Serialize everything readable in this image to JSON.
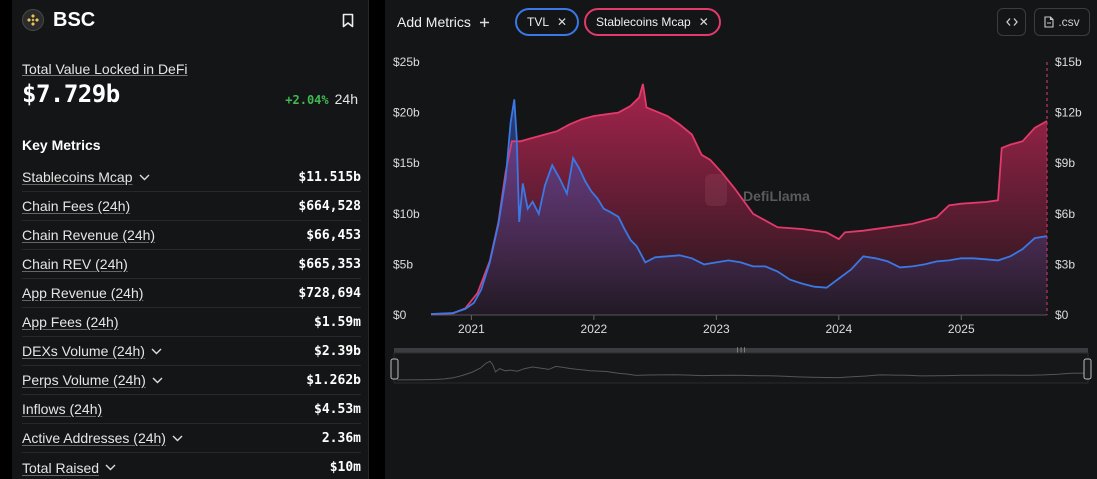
{
  "chain": {
    "name": "BSC",
    "logo_icon": "bnb-logo-icon"
  },
  "tvl": {
    "label": "Total Value Locked in DeFi",
    "value": "$7.729b",
    "change": "+2.04%",
    "period": "24h"
  },
  "key_metrics": {
    "title": "Key Metrics",
    "rows": [
      {
        "label": "Stablecoins Mcap",
        "value": "$11.515b",
        "dropdown": true
      },
      {
        "label": "Chain Fees (24h)",
        "value": "$664,528",
        "dropdown": false
      },
      {
        "label": "Chain Revenue (24h)",
        "value": "$66,453",
        "dropdown": false
      },
      {
        "label": "Chain REV (24h)",
        "value": "$665,353",
        "dropdown": false
      },
      {
        "label": "App Revenue (24h)",
        "value": "$728,694",
        "dropdown": false
      },
      {
        "label": "App Fees (24h)",
        "value": "$1.59m",
        "dropdown": false
      },
      {
        "label": "DEXs Volume (24h)",
        "value": "$2.39b",
        "dropdown": true
      },
      {
        "label": "Perps Volume (24h)",
        "value": "$1.262b",
        "dropdown": true
      },
      {
        "label": "Inflows (24h)",
        "value": "$4.53m",
        "dropdown": false
      },
      {
        "label": "Active Addresses (24h)",
        "value": "2.36m",
        "dropdown": true
      },
      {
        "label": "Total Raised",
        "value": "$10m",
        "dropdown": true
      }
    ]
  },
  "toolbar": {
    "add_metrics_label": "Add Metrics",
    "chips": [
      {
        "label": "TVL",
        "color": "#3a78e6"
      },
      {
        "label": "Stablecoins Mcap",
        "color": "#e23a6a"
      }
    ],
    "csv_label": ".csv"
  },
  "chart_data": {
    "type": "line",
    "watermark": "DefiLlama",
    "x_ticks": [
      "2021",
      "2022",
      "2023",
      "2024",
      "2025"
    ],
    "y_left_ticks": [
      "$0",
      "$5b",
      "$10b",
      "$15b",
      "$20b",
      "$25b"
    ],
    "y_right_ticks": [
      "$0",
      "$3b",
      "$6b",
      "$9b",
      "$12b",
      "$15b"
    ],
    "y_left_range": [
      0,
      25
    ],
    "y_right_range": [
      0,
      15
    ],
    "x_range": [
      2020.67,
      2025.7
    ],
    "series": [
      {
        "name": "TVL",
        "axis": "left",
        "color": "#3a78e6",
        "points": [
          [
            2020.67,
            0.1
          ],
          [
            2020.85,
            0.2
          ],
          [
            2020.95,
            0.6
          ],
          [
            2021.02,
            1.2
          ],
          [
            2021.08,
            2.5
          ],
          [
            2021.15,
            5.2
          ],
          [
            2021.22,
            9.0
          ],
          [
            2021.28,
            13.5
          ],
          [
            2021.32,
            19.0
          ],
          [
            2021.35,
            21.3
          ],
          [
            2021.37,
            17.5
          ],
          [
            2021.39,
            9.2
          ],
          [
            2021.42,
            13.0
          ],
          [
            2021.46,
            10.5
          ],
          [
            2021.5,
            11.2
          ],
          [
            2021.55,
            10.0
          ],
          [
            2021.6,
            12.8
          ],
          [
            2021.66,
            14.8
          ],
          [
            2021.72,
            13.5
          ],
          [
            2021.78,
            12.0
          ],
          [
            2021.83,
            15.5
          ],
          [
            2021.88,
            14.5
          ],
          [
            2021.93,
            13.2
          ],
          [
            2021.98,
            12.2
          ],
          [
            2022.03,
            11.5
          ],
          [
            2022.08,
            10.5
          ],
          [
            2022.13,
            10.2
          ],
          [
            2022.2,
            9.7
          ],
          [
            2022.25,
            8.5
          ],
          [
            2022.3,
            7.4
          ],
          [
            2022.35,
            6.8
          ],
          [
            2022.42,
            5.2
          ],
          [
            2022.5,
            5.7
          ],
          [
            2022.6,
            5.8
          ],
          [
            2022.7,
            5.9
          ],
          [
            2022.8,
            5.6
          ],
          [
            2022.9,
            5.0
          ],
          [
            2023.0,
            5.2
          ],
          [
            2023.1,
            5.4
          ],
          [
            2023.2,
            5.2
          ],
          [
            2023.3,
            4.8
          ],
          [
            2023.4,
            4.8
          ],
          [
            2023.5,
            4.3
          ],
          [
            2023.6,
            3.5
          ],
          [
            2023.7,
            3.1
          ],
          [
            2023.8,
            2.8
          ],
          [
            2023.9,
            2.7
          ],
          [
            2024.0,
            3.6
          ],
          [
            2024.1,
            4.5
          ],
          [
            2024.2,
            5.8
          ],
          [
            2024.3,
            5.6
          ],
          [
            2024.4,
            5.3
          ],
          [
            2024.5,
            4.7
          ],
          [
            2024.6,
            4.8
          ],
          [
            2024.7,
            5.0
          ],
          [
            2024.8,
            5.3
          ],
          [
            2024.9,
            5.4
          ],
          [
            2025.0,
            5.6
          ],
          [
            2025.1,
            5.6
          ],
          [
            2025.2,
            5.5
          ],
          [
            2025.3,
            5.4
          ],
          [
            2025.4,
            5.8
          ],
          [
            2025.5,
            6.5
          ],
          [
            2025.6,
            7.6
          ],
          [
            2025.7,
            7.8
          ]
        ]
      },
      {
        "name": "Stablecoins Mcap",
        "axis": "right",
        "color": "#e23a6a",
        "points": [
          [
            2020.67,
            0.05
          ],
          [
            2020.85,
            0.1
          ],
          [
            2020.95,
            0.4
          ],
          [
            2021.05,
            1.3
          ],
          [
            2021.15,
            3.2
          ],
          [
            2021.22,
            5.5
          ],
          [
            2021.28,
            8.5
          ],
          [
            2021.33,
            10.3
          ],
          [
            2021.4,
            10.3
          ],
          [
            2021.5,
            10.5
          ],
          [
            2021.6,
            10.7
          ],
          [
            2021.7,
            10.9
          ],
          [
            2021.8,
            11.3
          ],
          [
            2021.9,
            11.6
          ],
          [
            2022.0,
            11.8
          ],
          [
            2022.1,
            11.9
          ],
          [
            2022.2,
            12.0
          ],
          [
            2022.3,
            12.4
          ],
          [
            2022.37,
            12.9
          ],
          [
            2022.4,
            13.7
          ],
          [
            2022.43,
            12.3
          ],
          [
            2022.5,
            12.1
          ],
          [
            2022.6,
            11.8
          ],
          [
            2022.7,
            11.3
          ],
          [
            2022.8,
            10.7
          ],
          [
            2022.88,
            9.5
          ],
          [
            2022.95,
            9.2
          ],
          [
            2023.05,
            8.4
          ],
          [
            2023.15,
            7.5
          ],
          [
            2023.3,
            6.0
          ],
          [
            2023.5,
            5.2
          ],
          [
            2023.7,
            5.1
          ],
          [
            2023.9,
            4.9
          ],
          [
            2024.0,
            4.5
          ],
          [
            2024.05,
            4.9
          ],
          [
            2024.2,
            5.0
          ],
          [
            2024.4,
            5.2
          ],
          [
            2024.6,
            5.4
          ],
          [
            2024.8,
            5.8
          ],
          [
            2024.9,
            6.5
          ],
          [
            2025.0,
            6.6
          ],
          [
            2025.2,
            6.7
          ],
          [
            2025.3,
            6.8
          ],
          [
            2025.33,
            9.9
          ],
          [
            2025.4,
            10.1
          ],
          [
            2025.5,
            10.3
          ],
          [
            2025.6,
            11.1
          ],
          [
            2025.7,
            11.5
          ]
        ]
      }
    ]
  }
}
